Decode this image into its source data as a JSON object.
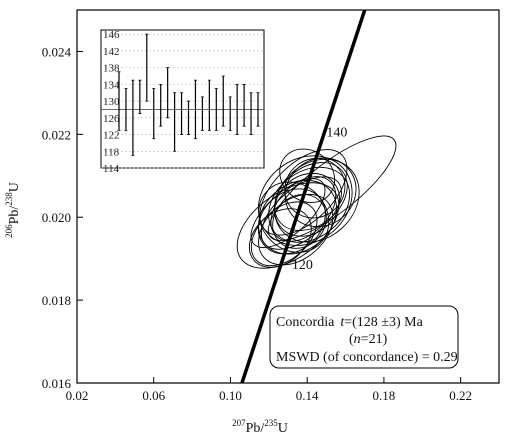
{
  "chart_data": {
    "type": "scatter",
    "subtype": "concordia-diagram",
    "xlabel": {
      "sup": "207",
      "base": "Pb/",
      "sup2": "235",
      "tail": "U"
    },
    "ylabel": {
      "sup": "206",
      "base": "Pb/",
      "sup2": "238",
      "tail": "U"
    },
    "xlim": [
      0.02,
      0.24
    ],
    "ylim": [
      0.016,
      0.025
    ],
    "x_ticks": [
      "0.02",
      "0.06",
      "0.10",
      "0.14",
      "0.18",
      "0.22"
    ],
    "y_ticks": [
      "0.016",
      "0.018",
      "0.020",
      "0.022",
      "0.024"
    ],
    "concordia_line": [
      [
        0.106,
        0.016
      ],
      [
        0.17,
        0.025
      ]
    ],
    "concordia_age_labels": [
      {
        "text": "140",
        "x": 0.15,
        "y": 0.02195
      },
      {
        "text": "120",
        "x": 0.132,
        "y": 0.01875
      }
    ],
    "ellipses": [
      {
        "x": 0.153,
        "y": 0.0207,
        "rx": 0.041,
        "ry": 0.0006,
        "angle": 38
      },
      {
        "x": 0.13,
        "y": 0.0198,
        "rx": 0.03,
        "ry": 0.0008,
        "angle": 35
      },
      {
        "x": 0.14,
        "y": 0.0203,
        "rx": 0.018,
        "ry": 0.0007,
        "angle": 40
      },
      {
        "x": 0.145,
        "y": 0.0204,
        "rx": 0.024,
        "ry": 0.0009,
        "angle": 42
      },
      {
        "x": 0.135,
        "y": 0.02,
        "rx": 0.022,
        "ry": 0.0008,
        "angle": 38
      },
      {
        "x": 0.138,
        "y": 0.0202,
        "rx": 0.02,
        "ry": 0.0006,
        "angle": 45
      },
      {
        "x": 0.132,
        "y": 0.0199,
        "rx": 0.019,
        "ry": 0.0007,
        "angle": 41
      },
      {
        "x": 0.142,
        "y": 0.0205,
        "rx": 0.021,
        "ry": 0.0007,
        "angle": 39
      },
      {
        "x": 0.128,
        "y": 0.0196,
        "rx": 0.02,
        "ry": 0.0006,
        "angle": 43
      },
      {
        "x": 0.147,
        "y": 0.0206,
        "rx": 0.019,
        "ry": 0.0008,
        "angle": 36
      },
      {
        "x": 0.137,
        "y": 0.0201,
        "rx": 0.025,
        "ry": 0.0006,
        "angle": 40
      },
      {
        "x": 0.133,
        "y": 0.02,
        "rx": 0.017,
        "ry": 0.0009,
        "angle": 44
      },
      {
        "x": 0.141,
        "y": 0.0203,
        "rx": 0.023,
        "ry": 0.0008,
        "angle": 37
      },
      {
        "x": 0.136,
        "y": 0.0199,
        "rx": 0.015,
        "ry": 0.0006,
        "angle": 46
      },
      {
        "x": 0.144,
        "y": 0.0207,
        "rx": 0.016,
        "ry": 0.0007,
        "angle": 39
      },
      {
        "x": 0.13,
        "y": 0.0201,
        "rx": 0.024,
        "ry": 0.0005,
        "angle": 42
      },
      {
        "x": 0.139,
        "y": 0.0204,
        "rx": 0.026,
        "ry": 0.001,
        "angle": 38
      },
      {
        "x": 0.134,
        "y": 0.0197,
        "rx": 0.022,
        "ry": 0.0007,
        "angle": 41
      },
      {
        "x": 0.14,
        "y": 0.021,
        "rx": 0.013,
        "ry": 0.0007,
        "angle": 50
      },
      {
        "x": 0.126,
        "y": 0.0195,
        "rx": 0.018,
        "ry": 0.0006,
        "angle": 40
      },
      {
        "x": 0.138,
        "y": 0.0206,
        "rx": 0.028,
        "ry": 0.0007,
        "angle": 44
      }
    ],
    "inset": {
      "ylim": [
        114,
        147
      ],
      "y_ticks": [
        "146",
        "142",
        "138",
        "134",
        "130",
        "126",
        "122",
        "118",
        "114"
      ],
      "mean": 128,
      "ages": [
        {
          "center": 130,
          "half": 7
        },
        {
          "center": 128,
          "half": 5
        },
        {
          "center": 126,
          "half": 9
        },
        {
          "center": 131,
          "half": 4
        },
        {
          "center": 138,
          "half": 8
        },
        {
          "center": 127,
          "half": 6
        },
        {
          "center": 129,
          "half": 5
        },
        {
          "center": 132,
          "half": 6
        },
        {
          "center": 125,
          "half": 7
        },
        {
          "center": 127,
          "half": 5
        },
        {
          "center": 126,
          "half": 4
        },
        {
          "center": 128,
          "half": 7
        },
        {
          "center": 127,
          "half": 4
        },
        {
          "center": 129,
          "half": 6
        },
        {
          "center": 128,
          "half": 5
        },
        {
          "center": 130,
          "half": 6
        },
        {
          "center": 127,
          "half": 4
        },
        {
          "center": 128,
          "half": 6
        },
        {
          "center": 129,
          "half": 5
        },
        {
          "center": 127,
          "half": 5
        },
        {
          "center": 128,
          "half": 4
        }
      ]
    },
    "annotation": {
      "line1_prefix": "Concordia",
      "line1_t": "t",
      "line1_rest": "=(128 ±3) Ma",
      "line2_open": "(",
      "line2_n": "n",
      "line2_close": "=21)",
      "line3": "MSWD (of concordance) = 0.29"
    }
  }
}
